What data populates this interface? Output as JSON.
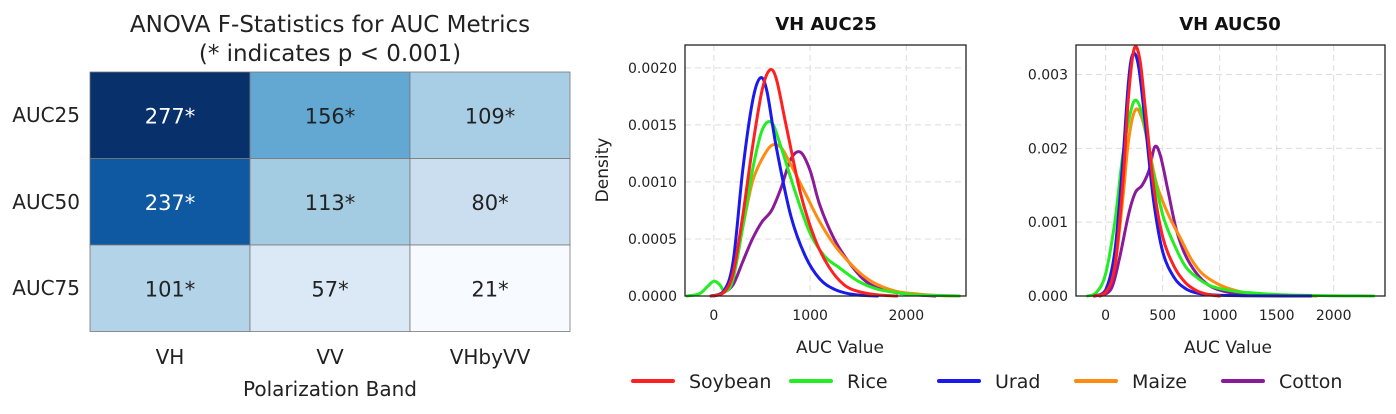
{
  "chart_data": [
    {
      "type": "heatmap",
      "title": "ANOVA F-Statistics for AUC Metrics",
      "subtitle": "(* indicates p < 0.001)",
      "xlabel": "Polarization Band",
      "ylabel": "",
      "columns": [
        "VH",
        "VV",
        "VHbyVV"
      ],
      "rows": [
        "AUC25",
        "AUC50",
        "AUC75"
      ],
      "values": [
        [
          277,
          156,
          109
        ],
        [
          237,
          113,
          80
        ],
        [
          101,
          57,
          21
        ]
      ],
      "cell_labels": [
        [
          "277*",
          "156*",
          "109*"
        ],
        [
          "237*",
          "113*",
          "80*"
        ],
        [
          "101*",
          "57*",
          "21*"
        ]
      ],
      "colormap": "Blues"
    },
    {
      "type": "line",
      "title": "VH AUC25",
      "xlabel": "AUC Value",
      "ylabel": "Density",
      "xlim": [
        -300,
        2620
      ],
      "ylim": [
        0,
        0.0022
      ],
      "xticks": [
        0,
        1000,
        2000
      ],
      "yticks": [
        0,
        0.0005,
        0.001,
        0.0015,
        0.002
      ],
      "ytick_labels": [
        "0.0000",
        "0.0005",
        "0.0010",
        "0.0015",
        "0.0020"
      ],
      "grid": true,
      "series": [
        {
          "name": "Soybean",
          "color": "#ff2020",
          "peak": 0.00198,
          "x": [
            -30,
            100,
            200,
            300,
            400,
            500,
            580,
            650,
            750,
            900,
            1050,
            1200,
            1350,
            1500,
            1700,
            1900
          ],
          "y": [
            0,
            3e-05,
            0.0002,
            0.0007,
            0.0013,
            0.0018,
            0.00198,
            0.0019,
            0.0015,
            0.0009,
            0.0005,
            0.00025,
            0.0001,
            4e-05,
            1e-05,
            0
          ]
        },
        {
          "name": "Rice",
          "color": "#22ee22",
          "peak": 0.00152,
          "x": [
            -280,
            -150,
            -70,
            0,
            60,
            120,
            200,
            300,
            400,
            500,
            600,
            700,
            850,
            1000,
            1150,
            1300,
            1500,
            1700,
            1900,
            2100,
            2300,
            2550
          ],
          "y": [
            0,
            2e-05,
            8e-05,
            0.00013,
            0.0001,
            4e-05,
            0.00015,
            0.0006,
            0.0011,
            0.00145,
            0.00152,
            0.0013,
            0.0009,
            0.00055,
            0.00035,
            0.00025,
            0.00013,
            6e-05,
            3e-05,
            1e-05,
            5e-06,
            0
          ]
        },
        {
          "name": "Urad",
          "color": "#1a1aee",
          "peak": 0.00191,
          "x": [
            -30,
            100,
            200,
            300,
            400,
            480,
            550,
            650,
            800,
            950,
            1100,
            1250,
            1400,
            1550,
            1700
          ],
          "y": [
            0,
            4e-05,
            0.0003,
            0.0011,
            0.0017,
            0.00191,
            0.0018,
            0.0013,
            0.0007,
            0.00035,
            0.00015,
            6e-05,
            2e-05,
            5e-06,
            0
          ]
        },
        {
          "name": "Maize",
          "color": "#ff8c10",
          "peak": 0.00132,
          "x": [
            -30,
            100,
            200,
            300,
            400,
            500,
            600,
            700,
            800,
            950,
            1100,
            1250,
            1400,
            1550,
            1700,
            1900,
            2100,
            2300,
            2550
          ],
          "y": [
            0,
            3e-05,
            0.0002,
            0.0006,
            0.001,
            0.0012,
            0.00132,
            0.0013,
            0.00115,
            0.0009,
            0.00065,
            0.00045,
            0.0003,
            0.00018,
            0.0001,
            4e-05,
            2e-05,
            5e-06,
            0
          ]
        },
        {
          "name": "Cotton",
          "color": "#8b1a9a",
          "peak": 0.00126,
          "x": [
            0,
            100,
            200,
            300,
            400,
            500,
            600,
            700,
            800,
            900,
            1000,
            1100,
            1250,
            1400,
            1550,
            1700,
            1900,
            2100,
            2300
          ],
          "y": [
            0,
            3e-05,
            0.0001,
            0.0003,
            0.0005,
            0.00065,
            0.00075,
            0.00095,
            0.0012,
            0.00126,
            0.0011,
            0.0008,
            0.0005,
            0.0003,
            0.00015,
            7e-05,
            3e-05,
            1e-05,
            0
          ]
        }
      ]
    },
    {
      "type": "line",
      "title": "VH AUC50",
      "xlabel": "AUC Value",
      "ylabel": "",
      "xlim": [
        -260,
        2450
      ],
      "ylim": [
        0,
        0.0034
      ],
      "xticks": [
        0,
        500,
        1000,
        1500,
        2000
      ],
      "yticks": [
        0,
        0.001,
        0.002,
        0.003
      ],
      "ytick_labels": [
        "0.000",
        "0.001",
        "0.002",
        "0.003"
      ],
      "grid": true,
      "series": [
        {
          "name": "Soybean",
          "color": "#ff2020",
          "peak": 0.00335,
          "x": [
            -100,
            0,
            80,
            150,
            200,
            250,
            300,
            350,
            420,
            500,
            600,
            700,
            800,
            900,
            1000
          ],
          "y": [
            0,
            5e-05,
            0.0004,
            0.0015,
            0.0027,
            0.00335,
            0.0032,
            0.0025,
            0.0015,
            0.0008,
            0.0004,
            0.00018,
            7e-05,
            2e-05,
            0
          ]
        },
        {
          "name": "Rice",
          "color": "#22ee22",
          "peak": 0.00265,
          "x": [
            -160,
            -80,
            0,
            80,
            150,
            220,
            270,
            330,
            400,
            500,
            600,
            700,
            800,
            900,
            1000,
            1150,
            1300,
            1500,
            1700,
            1900,
            2100,
            2350
          ],
          "y": [
            0,
            5e-05,
            0.0003,
            0.001,
            0.0019,
            0.0025,
            0.00265,
            0.0024,
            0.0018,
            0.0011,
            0.0007,
            0.0004,
            0.00025,
            0.00015,
            0.0001,
            6e-05,
            4e-05,
            2e-05,
            1e-05,
            5e-06,
            2e-06,
            0
          ]
        },
        {
          "name": "Urad",
          "color": "#1a1aee",
          "peak": 0.00328,
          "x": [
            -100,
            0,
            80,
            150,
            200,
            240,
            290,
            350,
            420,
            500,
            600,
            700,
            800,
            900,
            1000,
            1200,
            1500,
            1800
          ],
          "y": [
            0,
            8e-05,
            0.0006,
            0.0018,
            0.0029,
            0.00328,
            0.0031,
            0.0023,
            0.0013,
            0.0006,
            0.00025,
            0.0001,
            4e-05,
            2e-05,
            1e-05,
            4e-06,
            1e-06,
            0
          ]
        },
        {
          "name": "Maize",
          "color": "#ff8c10",
          "peak": 0.00252,
          "x": [
            -100,
            0,
            80,
            150,
            200,
            260,
            320,
            380,
            450,
            550,
            650,
            750,
            850,
            1000,
            1150,
            1300,
            1500,
            1700,
            1850
          ],
          "y": [
            0,
            5e-05,
            0.0004,
            0.0013,
            0.0021,
            0.00252,
            0.0024,
            0.002,
            0.0015,
            0.0011,
            0.0008,
            0.0005,
            0.0003,
            0.00015,
            7e-05,
            3e-05,
            1e-05,
            3e-06,
            0
          ]
        },
        {
          "name": "Cotton",
          "color": "#8b1a9a",
          "peak": 0.00202,
          "x": [
            -50,
            50,
            120,
            200,
            260,
            320,
            380,
            430,
            480,
            550,
            620,
            700,
            800,
            900,
            1000,
            1150,
            1300,
            1450,
            1600
          ],
          "y": [
            0,
            0.0001,
            0.0005,
            0.0011,
            0.0014,
            0.0015,
            0.0017,
            0.00202,
            0.0019,
            0.0014,
            0.0009,
            0.00055,
            0.0003,
            0.00015,
            8e-05,
            3e-05,
            1e-05,
            3e-06,
            0
          ]
        }
      ]
    }
  ],
  "legend": {
    "placement": "bottom",
    "entries": [
      {
        "label": "Soybean",
        "color": "#ff2020"
      },
      {
        "label": "Rice",
        "color": "#22ee22"
      },
      {
        "label": "Urad",
        "color": "#1a1aee"
      },
      {
        "label": "Maize",
        "color": "#ff8c10"
      },
      {
        "label": "Cotton",
        "color": "#8b1a9a"
      }
    ]
  }
}
